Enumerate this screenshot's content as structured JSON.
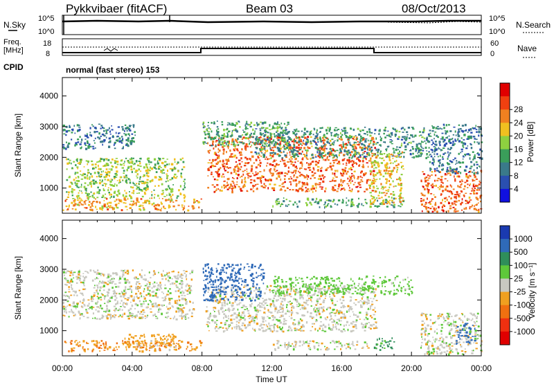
{
  "header": {
    "radar": "Pykkvibaer (fitACF)",
    "beam": "Beam 03",
    "date": "08/Oct/2013"
  },
  "noise_panel": {
    "left_label": "N.Sky",
    "left_ticks": [
      "10^5",
      "10^0"
    ],
    "right_label": "N.Search",
    "right_ticks": [
      "10^5",
      "10^0"
    ]
  },
  "freq_panel": {
    "left_label_1": "Freq.",
    "left_label_2": "[MHz]",
    "left_ticks": [
      "18",
      "8"
    ],
    "right_label": "Nave",
    "right_ticks": [
      "60",
      "0"
    ],
    "cpid_label": "CPID",
    "cpid_text": "normal (fast stereo) 153"
  },
  "chart_data": [
    {
      "type": "heatmap",
      "name": "power",
      "ylabel": "Slant Range [km]",
      "xlabel": "",
      "ylim": [
        180,
        4600
      ],
      "yticks": [
        "1000",
        "2000",
        "3000",
        "4000"
      ],
      "colorbar_label": "Power [dB]",
      "colorbar_ticks": [
        "4",
        "8",
        "12",
        "16",
        "20",
        "24",
        "28"
      ],
      "colorbar_colors": [
        "#1010e0",
        "#2a4fb0",
        "#3a7a8a",
        "#3a9e5a",
        "#8ed040",
        "#f0c020",
        "#f08020",
        "#f04010",
        "#e00000"
      ],
      "regions": [
        {
          "x0": 0.0,
          "x1": 4.2,
          "r0": 2300,
          "r1": 3100,
          "level": 8
        },
        {
          "x0": 0.2,
          "x1": 7.0,
          "r0": 700,
          "r1": 2000,
          "level": 16
        },
        {
          "x0": 0.0,
          "x1": 8.0,
          "r0": 300,
          "r1": 700,
          "level": 22
        },
        {
          "x0": 8.3,
          "x1": 17.9,
          "r0": 900,
          "r1": 2700,
          "level": 26
        },
        {
          "x0": 8.0,
          "x1": 13.0,
          "r0": 2400,
          "r1": 3200,
          "level": 12
        },
        {
          "x0": 11.0,
          "x1": 21.0,
          "r0": 2000,
          "r1": 3000,
          "level": 10
        },
        {
          "x0": 12.0,
          "x1": 19.5,
          "r0": 400,
          "r1": 700,
          "level": 12
        },
        {
          "x0": 17.5,
          "x1": 19.5,
          "r0": 500,
          "r1": 2200,
          "level": 20
        },
        {
          "x0": 20.5,
          "x1": 24.0,
          "r0": 250,
          "r1": 1600,
          "level": 26
        },
        {
          "x0": 21.0,
          "x1": 24.0,
          "r0": 1500,
          "r1": 3100,
          "level": 8
        }
      ]
    },
    {
      "type": "heatmap",
      "name": "velocity",
      "ylabel": "Slant Range [km]",
      "xlabel": "Time UT",
      "ylim": [
        180,
        4600
      ],
      "yticks": [
        "1000",
        "2000",
        "3000",
        "4000"
      ],
      "xticks": [
        "00:00",
        "04:00",
        "08:00",
        "12:00",
        "16:00",
        "20:00",
        "00:00"
      ],
      "xlim": [
        0,
        24
      ],
      "colorbar_label": "Velocity [m s⁻¹]",
      "colorbar_ticks": [
        "1000",
        "500",
        "100",
        "25",
        "-25",
        "-100",
        "-500",
        "-1000"
      ],
      "colorbar_colors": [
        "#1a3ab0",
        "#2f6ab8",
        "#2f8e5a",
        "#5ec83a",
        "#c8c8c0",
        "#f0a020",
        "#f07010",
        "#f03010",
        "#e00000"
      ],
      "regions": [
        {
          "x0": 0.0,
          "x1": 7.5,
          "r0": 1400,
          "r1": 3000,
          "level": 0
        },
        {
          "x0": 0.0,
          "x1": 8.0,
          "r0": 350,
          "r1": 700,
          "level": -100
        },
        {
          "x0": 3.5,
          "x1": 6.5,
          "r0": 400,
          "r1": 900,
          "level": -50
        },
        {
          "x0": 8.2,
          "x1": 18.0,
          "r0": 1000,
          "r1": 2500,
          "level": 0
        },
        {
          "x0": 8.0,
          "x1": 11.5,
          "r0": 2000,
          "r1": 3200,
          "level": 700
        },
        {
          "x0": 12.0,
          "x1": 20.0,
          "r0": 2200,
          "r1": 2800,
          "level": 60
        },
        {
          "x0": 12.0,
          "x1": 17.5,
          "r0": 400,
          "r1": 700,
          "level": 0
        },
        {
          "x0": 17.8,
          "x1": 19.0,
          "r0": 400,
          "r1": 800,
          "level": 120
        },
        {
          "x0": 20.5,
          "x1": 24.0,
          "r0": 250,
          "r1": 1600,
          "level": 0
        },
        {
          "x0": 22.5,
          "x1": 23.6,
          "r0": 600,
          "r1": 1300,
          "level": 900
        }
      ]
    }
  ]
}
